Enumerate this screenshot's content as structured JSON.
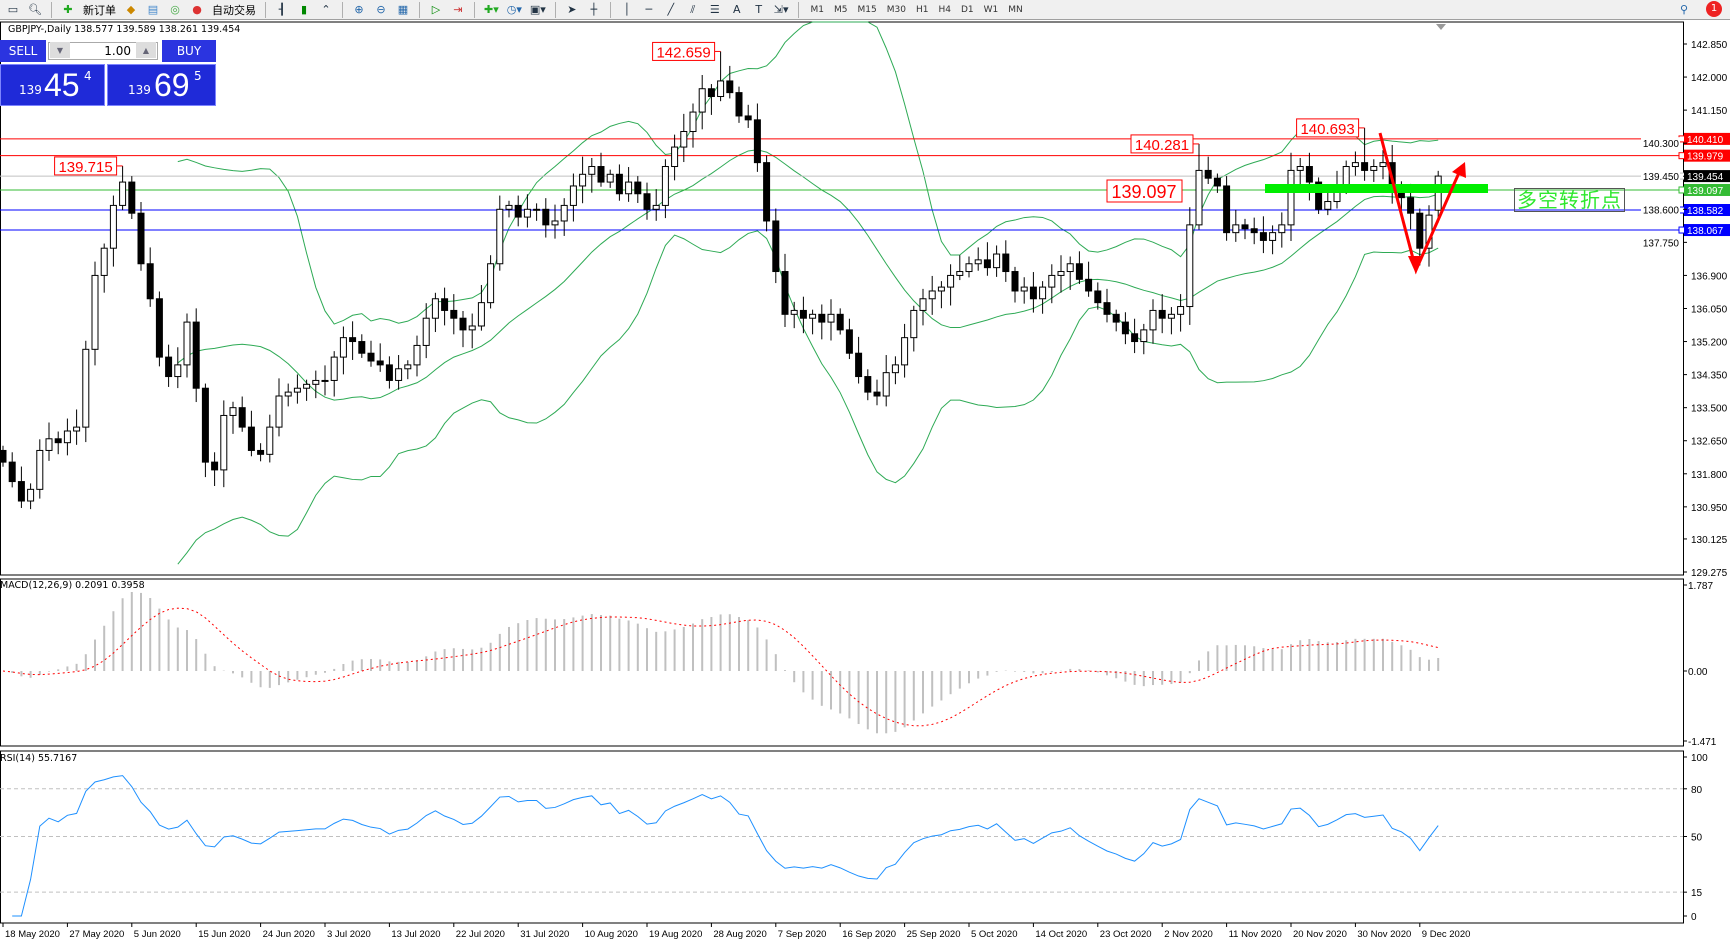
{
  "toolbar": {
    "new_order": "新订单",
    "auto_trading": "自动交易",
    "timeframes": [
      "M1",
      "M5",
      "M15",
      "M30",
      "H1",
      "H4",
      "D1",
      "W1",
      "MN"
    ],
    "notification_count": "1"
  },
  "chart_title": "GBPJPY-,Daily  138.577 139.589 138.261 139.454",
  "trade_panel": {
    "sell": "SELL",
    "buy": "BUY",
    "lot": "1.00",
    "bid_big": "139",
    "bid_main": "45",
    "bid_pip": "4",
    "ask_big": "139",
    "ask_main": "69",
    "ask_pip": "5"
  },
  "macd_label": "MACD(12,26,9) 0.2091 0.3958",
  "rsi_label": "RSI(14) 55.7167",
  "annotation_text": "多空转折点",
  "level_label": "139.097",
  "colors": {
    "up_body": "#ffffff",
    "down_body": "#000000",
    "bands": "#2eaa55",
    "macd_hist": "#c0c0c0",
    "macd_signal": "#ff0000",
    "rsi": "#1e90ff",
    "resistance": "#ff0000",
    "support": "#0000ff",
    "pivot": "#22cc22",
    "current": "#000000"
  },
  "chart_data": [
    {
      "type": "candlestick",
      "symbol": "GBPJPY",
      "timeframe": "Daily",
      "ylim": [
        129.275,
        142.85
      ],
      "yticks": [
        "142.850",
        "142.000",
        "141.150",
        "140.300",
        "139.450",
        "138.600",
        "137.750",
        "136.900",
        "136.050",
        "135.200",
        "134.350",
        "133.500",
        "132.650",
        "131.800",
        "130.950",
        "130.125",
        "129.275"
      ],
      "xticks": [
        "18 May 2020",
        "27 May 2020",
        "5 Jun 2020",
        "15 Jun 2020",
        "24 Jun 2020",
        "3 Jul 2020",
        "13 Jul 2020",
        "22 Jul 2020",
        "31 Jul 2020",
        "10 Aug 2020",
        "19 Aug 2020",
        "28 Aug 2020",
        "7 Sep 2020",
        "16 Sep 2020",
        "25 Sep 2020",
        "5 Oct 2020",
        "14 Oct 2020",
        "23 Oct 2020",
        "2 Nov 2020",
        "11 Nov 2020",
        "20 Nov 2020",
        "30 Nov 2020",
        "9 Dec 2020"
      ],
      "xtick_every": 7,
      "closes": [
        132.1,
        131.6,
        131.1,
        131.4,
        132.4,
        132.7,
        132.6,
        132.9,
        133.0,
        135.0,
        136.9,
        137.6,
        138.7,
        139.3,
        138.5,
        137.2,
        136.3,
        134.8,
        134.3,
        134.6,
        135.7,
        134.0,
        132.1,
        131.9,
        133.3,
        133.5,
        133.0,
        132.4,
        132.3,
        133.0,
        133.8,
        133.9,
        134.0,
        134.1,
        134.2,
        134.2,
        134.8,
        135.3,
        135.2,
        134.9,
        134.7,
        134.6,
        134.2,
        134.5,
        134.6,
        135.1,
        135.8,
        136.3,
        136.0,
        135.8,
        135.5,
        135.6,
        136.2,
        137.2,
        138.6,
        138.7,
        138.4,
        138.6,
        138.6,
        138.2,
        138.3,
        138.7,
        139.2,
        139.5,
        139.7,
        139.3,
        139.5,
        139.0,
        139.3,
        139.0,
        138.6,
        138.7,
        139.7,
        140.2,
        140.6,
        141.1,
        141.7,
        141.5,
        141.9,
        141.6,
        141.0,
        140.9,
        139.8,
        138.3,
        137.0,
        135.9,
        136.0,
        135.8,
        135.9,
        135.7,
        135.9,
        135.5,
        134.9,
        134.3,
        133.9,
        133.8,
        134.4,
        134.6,
        135.3,
        136.0,
        136.3,
        136.5,
        136.6,
        136.9,
        137.0,
        137.2,
        137.3,
        137.1,
        137.45,
        137.0,
        136.5,
        136.6,
        136.3,
        136.6,
        136.9,
        137.0,
        137.2,
        136.8,
        136.5,
        136.2,
        135.9,
        135.7,
        135.4,
        135.2,
        135.5,
        136.0,
        135.8,
        135.9,
        136.1,
        138.2,
        139.6,
        139.4,
        139.2,
        138.0,
        138.2,
        138.1,
        138.0,
        137.8,
        138.0,
        138.2,
        139.6,
        139.7,
        139.3,
        138.6,
        138.8,
        139.2,
        139.7,
        139.8,
        139.6,
        139.7,
        139.8,
        139.1,
        138.9,
        138.5,
        137.6,
        138.45,
        139.454
      ],
      "last_candle": {
        "open": 138.577,
        "high": 139.589,
        "low": 138.261,
        "close": 139.454
      },
      "high_labels": [
        {
          "index": 13,
          "price": 139.715,
          "label": "139.715"
        },
        {
          "index": 78,
          "price": 142.659,
          "label": "142.659"
        },
        {
          "index": 130,
          "price": 140.281,
          "label": "140.281"
        },
        {
          "index": 148,
          "price": 140.693,
          "label": "140.693"
        }
      ],
      "hlines": [
        {
          "price": 140.41,
          "label": "140.410",
          "color": "#ff0000"
        },
        {
          "price": 139.979,
          "label": "139.979",
          "color": "#ff0000"
        },
        {
          "price": 139.454,
          "label": "139.454",
          "color": "#000000",
          "line": "#c0c0c0"
        },
        {
          "price": 139.097,
          "label": "139.097",
          "color": "#33bb33"
        },
        {
          "price": 138.582,
          "label": "138.582",
          "color": "#0000ff"
        },
        {
          "price": 138.067,
          "label": "138.067",
          "color": "#0000ff"
        }
      ],
      "indicator": "Bollinger Bands (20,2)"
    },
    {
      "type": "bar+line",
      "name": "MACD(12,26,9)",
      "ylim": [
        -1.471,
        1.787
      ],
      "yticks": [
        "1.787",
        "0.00",
        "-1.471"
      ]
    },
    {
      "type": "line",
      "name": "RSI(14)",
      "ylim": [
        0,
        100
      ],
      "yticks": [
        "100",
        "80",
        "50",
        "15",
        "0"
      ],
      "levels": [
        80,
        50,
        15
      ]
    }
  ]
}
